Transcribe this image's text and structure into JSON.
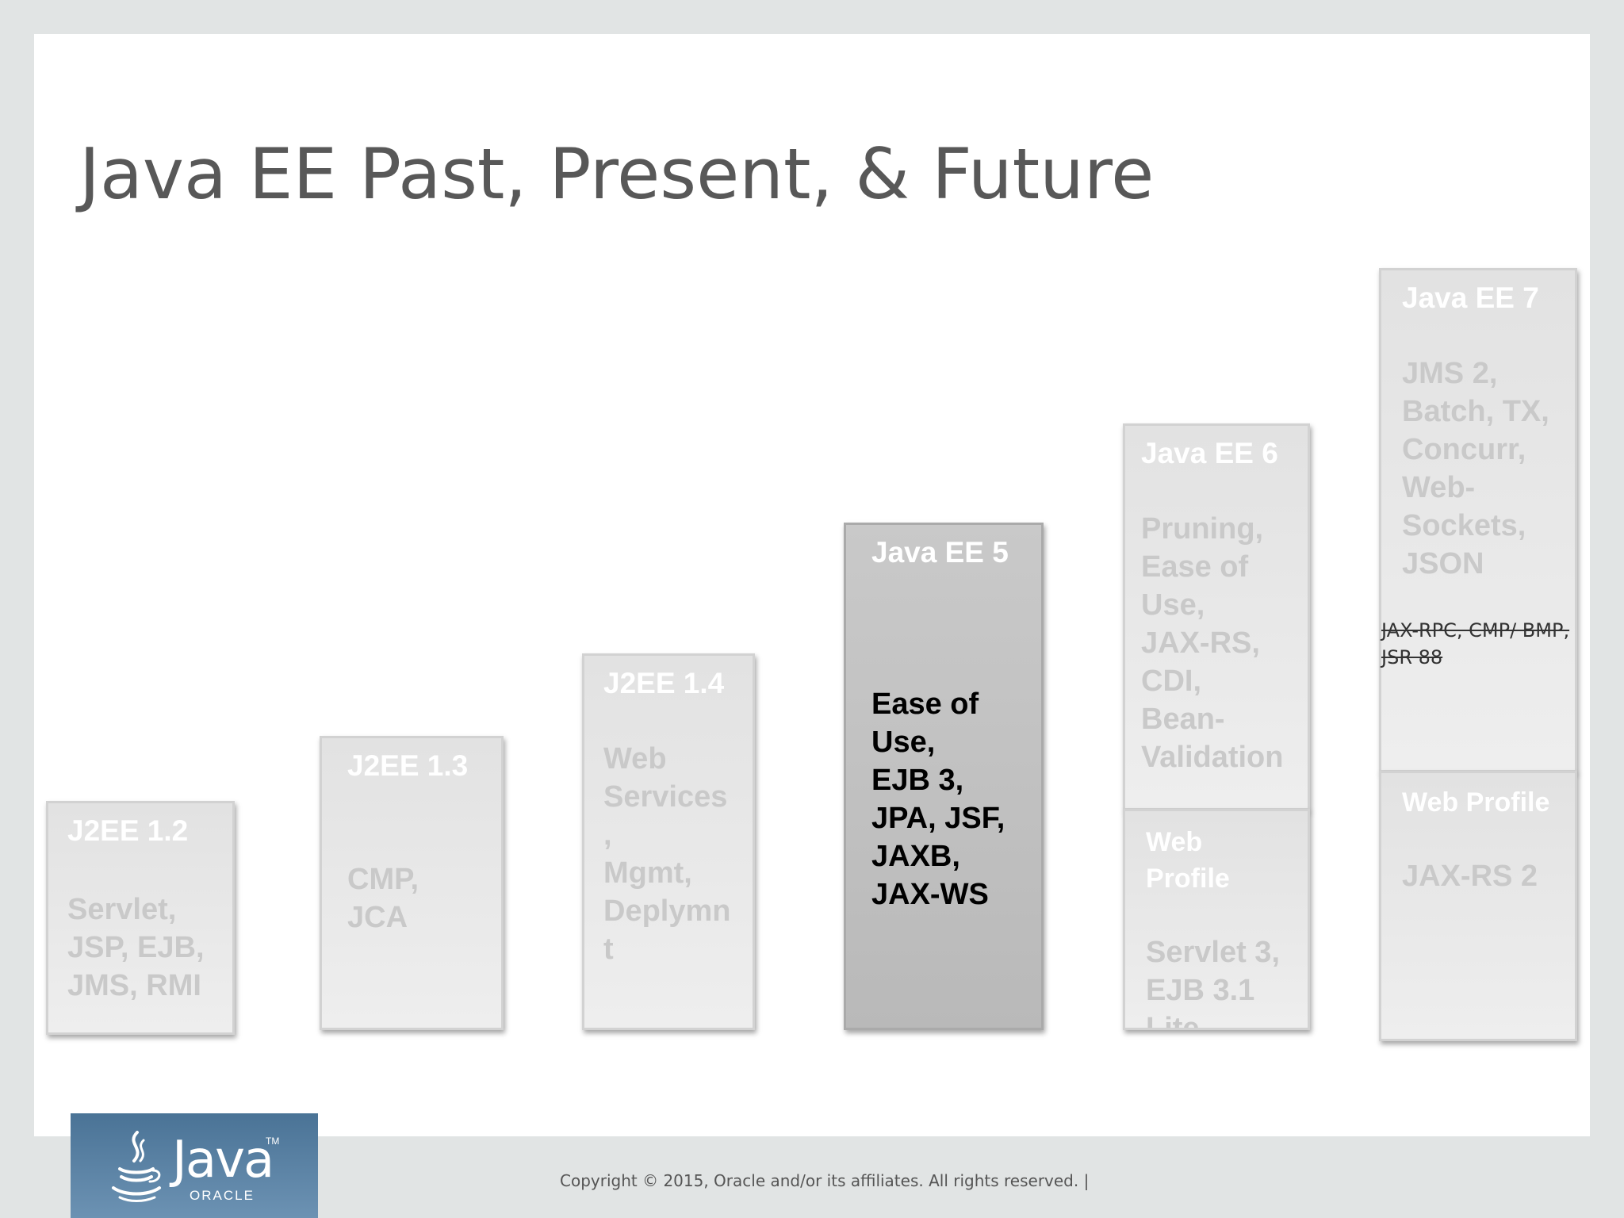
{
  "title": "Java EE Past, Present, & Future",
  "releases": [
    {
      "name": "J2EE 1.2",
      "features": [
        "Servlet,",
        "JSP, EJB,",
        "JMS, RMI"
      ]
    },
    {
      "name": "J2EE 1.3",
      "features": [
        "CMP,",
        "JCA"
      ]
    },
    {
      "name": "J2EE 1.4",
      "features": [
        "Web",
        "Services",
        ",",
        "Mgmt,",
        "Deplymn",
        "t"
      ]
    },
    {
      "name": "Java EE 5",
      "features": [
        "Ease of",
        "Use,",
        "EJB 3,",
        "JPA, JSF,",
        "JAXB,",
        "JAX-WS"
      ]
    },
    {
      "name": "Java EE 6",
      "features": [
        "Pruning,",
        "Ease of",
        "Use,",
        "JAX-RS,",
        "CDI,",
        "Bean-",
        "Validation"
      ],
      "web_profile": {
        "label": [
          "Web",
          "Profile"
        ],
        "features": [
          "Servlet 3,",
          "EJB 3.1",
          "Lite"
        ]
      }
    },
    {
      "name": "Java EE 7",
      "features": [
        "JMS 2,",
        "Batch, TX,",
        "Concurr,",
        "Web-",
        "Sockets,",
        "JSON"
      ],
      "pruned": [
        "JAX-RPC, CMP/ BMP,",
        "JSR 88"
      ],
      "web_profile": {
        "label": [
          "Web Profile"
        ],
        "features": [
          "JAX-RS 2"
        ]
      }
    }
  ],
  "footer": {
    "logo_text": "Java",
    "logo_tm": "TM",
    "logo_sub": "ORACLE",
    "copyright": "Copyright © 2015, Oracle and/or its affiliates. All rights reserved.  |"
  }
}
